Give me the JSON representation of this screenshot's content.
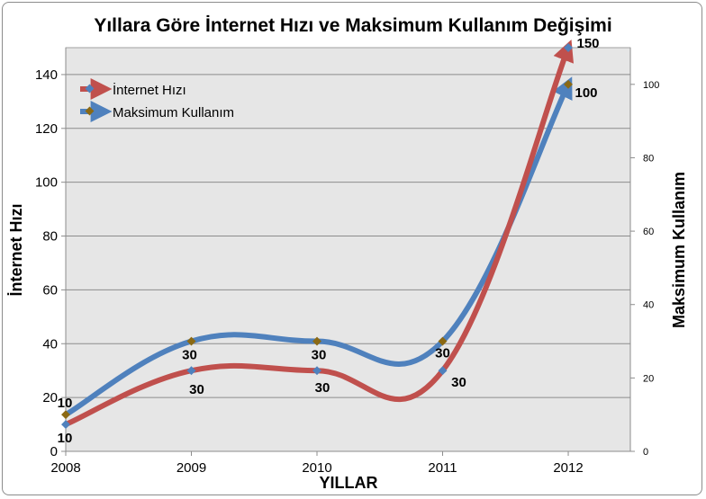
{
  "chart_data": {
    "type": "line",
    "title": "Yıllara Göre İnternet Hızı ve Maksimum Kullanım Değişimi",
    "xlabel": "YILLAR",
    "ylabel": "İnternet Hızı",
    "y2label": "Maksimum Kullanım",
    "categories": [
      "2008",
      "2009",
      "2010",
      "2011",
      "2012"
    ],
    "ylim": [
      0,
      150
    ],
    "y2lim": [
      0,
      110
    ],
    "yticks": [
      0,
      20,
      40,
      60,
      80,
      100,
      120,
      140
    ],
    "y2ticks": [
      0,
      20,
      40,
      60,
      80,
      100
    ],
    "grid": true,
    "legend_position": "top-left",
    "series": [
      {
        "name": "İnternet Hızı",
        "axis": "left",
        "color": "#c0504d",
        "values": [
          10,
          30,
          30,
          30,
          150
        ],
        "labels": [
          "10",
          "30",
          "30",
          "30",
          "150"
        ]
      },
      {
        "name": "Maksimum Kullanım",
        "axis": "right",
        "color": "#4f81bd",
        "values": [
          10,
          30,
          30,
          30,
          100
        ],
        "labels": [
          "10",
          "30",
          "30",
          "30",
          "100"
        ]
      }
    ]
  }
}
